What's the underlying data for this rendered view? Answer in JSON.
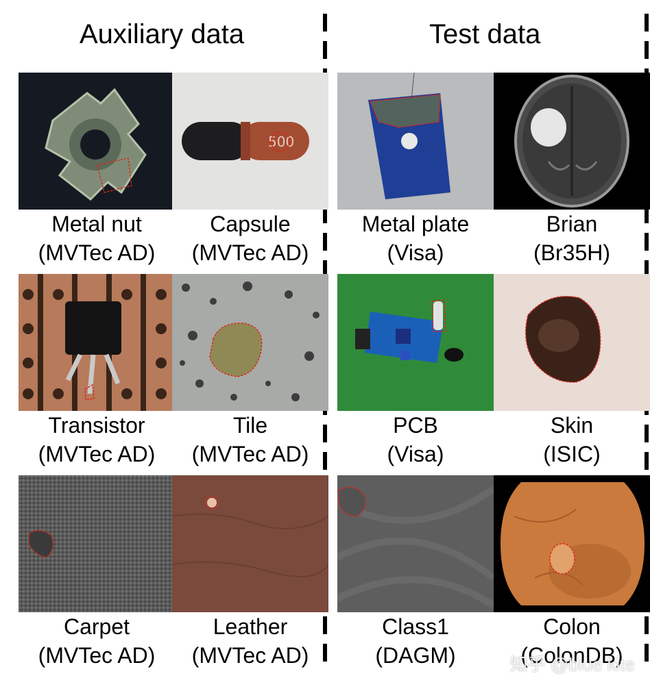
{
  "headings": {
    "auxiliary": "Auxiliary data",
    "test": "Test data"
  },
  "auxiliary": [
    {
      "name": "Metal nut",
      "source": "(MVTec AD)"
    },
    {
      "name": "Capsule",
      "source": "(MVTec AD)"
    },
    {
      "name": "Transistor",
      "source": "(MVTec AD)"
    },
    {
      "name": "Tile",
      "source": "(MVTec AD)"
    },
    {
      "name": "Carpet",
      "source": "(MVTec AD)"
    },
    {
      "name": "Leather",
      "source": "(MVTec AD)"
    }
  ],
  "test": [
    {
      "name": "Metal plate",
      "source": "(Visa)"
    },
    {
      "name": "Brian",
      "source": "(Br35H)"
    },
    {
      "name": "PCB",
      "source": "(Visa)"
    },
    {
      "name": "Skin",
      "source": "(ISIC)"
    },
    {
      "name": "Class1",
      "source": "(DAGM)"
    },
    {
      "name": "Colon",
      "source": "(ColonDB)"
    }
  ],
  "watermark": "知乎 @blue kite",
  "colors": {
    "anomaly_outline": "#e0241b",
    "divider": "#000000"
  }
}
